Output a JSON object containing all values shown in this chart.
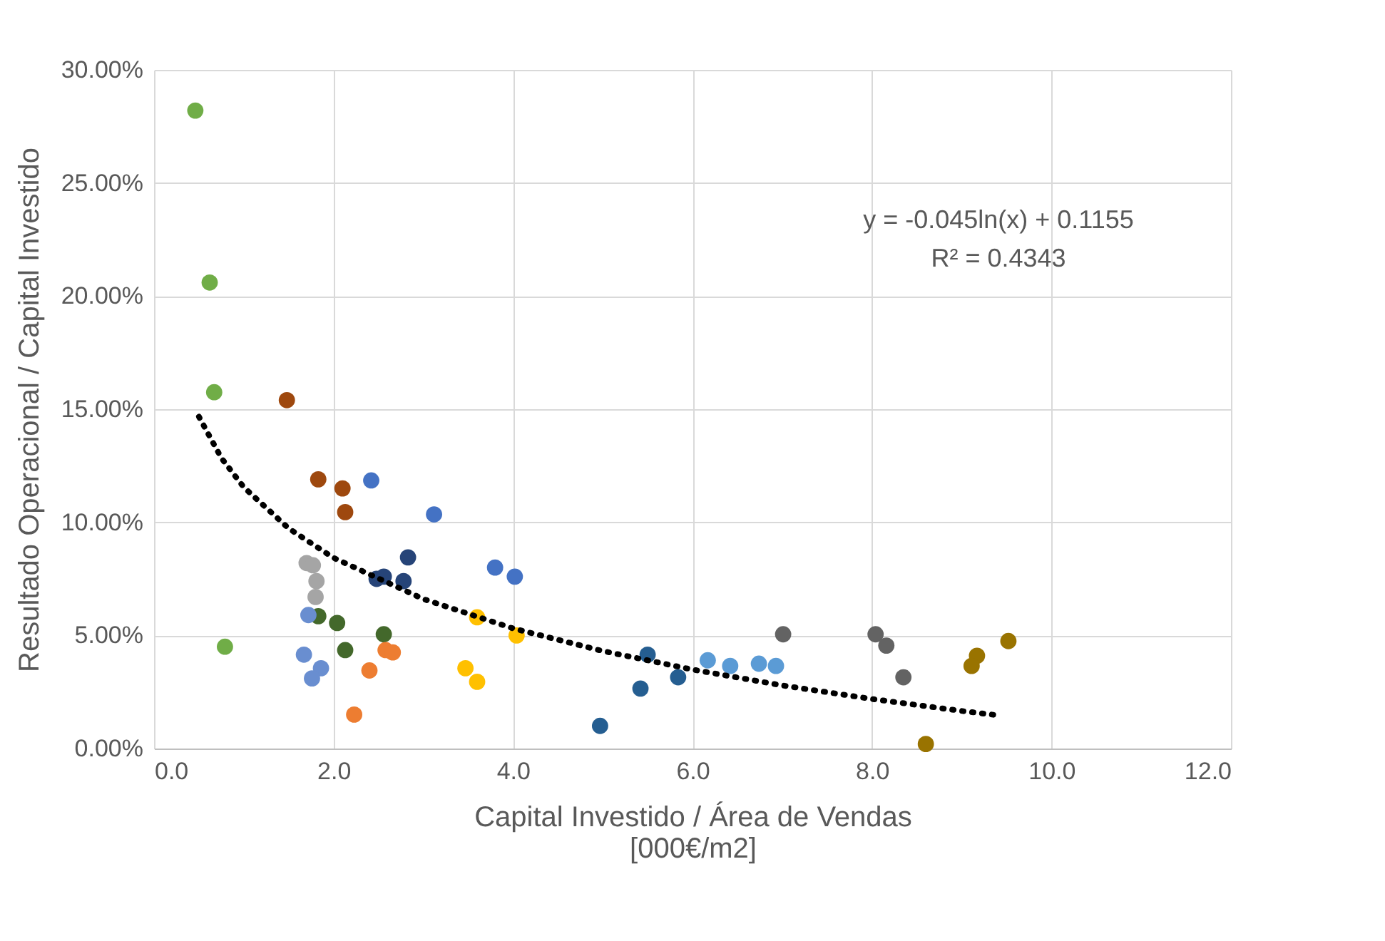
{
  "chart_data": {
    "type": "scatter",
    "xlabel": "Capital Investido / Área de Vendas\n[000€/m2]",
    "ylabel": "Resultado Operacional / Capital Investido",
    "xlim": [
      0,
      12
    ],
    "xticks": [
      {
        "value": 0,
        "label": "0.0"
      },
      {
        "value": 2,
        "label": "2.0"
      },
      {
        "value": 4,
        "label": "4.0"
      },
      {
        "value": 6,
        "label": "6.0"
      },
      {
        "value": 8,
        "label": "8.0"
      },
      {
        "value": 10,
        "label": "10.0"
      },
      {
        "value": 12,
        "label": "12.0"
      }
    ],
    "ylim": [
      0,
      30
    ],
    "yticks": [
      {
        "value": 0,
        "label": "0.00%"
      },
      {
        "value": 5,
        "label": "5.00%"
      },
      {
        "value": 10,
        "label": "10.00%"
      },
      {
        "value": 15,
        "label": "15.00%"
      },
      {
        "value": 20,
        "label": "20.00%"
      },
      {
        "value": 25,
        "label": "25.00%"
      },
      {
        "value": 30,
        "label": "30.00%"
      }
    ],
    "grid": true,
    "marker": "circle",
    "annotations": [
      "y = -0.045ln(x) + 0.1155",
      "R² = 0.4343"
    ],
    "series": [
      {
        "color": "#70ad47",
        "x": [
          0.46,
          0.62,
          0.67,
          0.79
        ],
        "values": [
          28.2,
          20.6,
          15.75,
          4.5
        ]
      },
      {
        "color": "#9e480e",
        "x": [
          1.48,
          1.83,
          2.1,
          2.13
        ],
        "values": [
          15.4,
          11.9,
          11.5,
          10.45
        ]
      },
      {
        "color": "#4472c4",
        "x": [
          2.42,
          3.12,
          3.8,
          4.02
        ],
        "values": [
          11.85,
          10.35,
          8.0,
          7.6
        ]
      },
      {
        "color": "#264478",
        "x": [
          2.48,
          2.56,
          2.78,
          2.83
        ],
        "values": [
          7.5,
          7.6,
          7.4,
          8.45
        ]
      },
      {
        "color": "#a5a5a5",
        "x": [
          1.7,
          1.77,
          1.81,
          1.8
        ],
        "values": [
          8.2,
          8.1,
          7.4,
          6.7
        ]
      },
      {
        "color": "#43682b",
        "x": [
          1.83,
          2.04,
          2.13,
          2.56
        ],
        "values": [
          5.85,
          5.55,
          4.35,
          5.05
        ]
      },
      {
        "color": "#698ed0",
        "x": [
          1.72,
          1.67,
          1.86,
          1.76
        ],
        "values": [
          5.9,
          4.15,
          3.55,
          3.1
        ]
      },
      {
        "color": "#ed7d31",
        "x": [
          2.4,
          2.58,
          2.66,
          2.23
        ],
        "values": [
          3.45,
          4.35,
          4.25,
          1.5
        ]
      },
      {
        "color": "#ffc000",
        "x": [
          3.6,
          3.47,
          3.6,
          4.04
        ],
        "values": [
          5.8,
          3.55,
          2.95,
          5.0
        ]
      },
      {
        "color": "#255e91",
        "x": [
          4.97,
          5.42,
          5.5,
          5.84
        ],
        "values": [
          1.0,
          2.65,
          4.15,
          3.15
        ]
      },
      {
        "color": "#5b9bd5",
        "x": [
          6.17,
          6.42,
          6.74,
          6.93
        ],
        "values": [
          3.9,
          3.65,
          3.75,
          3.65
        ]
      },
      {
        "color": "#636363",
        "x": [
          7.01,
          8.04,
          8.16,
          8.35
        ],
        "values": [
          5.05,
          5.05,
          4.55,
          3.15
        ]
      },
      {
        "color": "#997300",
        "x": [
          9.17,
          9.11,
          9.52,
          8.6
        ],
        "values": [
          4.1,
          3.65,
          4.75,
          0.2
        ]
      },
      {
        "type": "line",
        "marker": "none",
        "color": "#000000",
        "line_style": "dotted",
        "x": [
          0.5,
          0.75,
          1,
          1.5,
          2,
          3,
          4,
          5,
          6,
          7,
          8,
          9,
          9.4
        ],
        "values": [
          14.67,
          12.84,
          11.55,
          9.73,
          8.43,
          6.61,
          5.31,
          4.31,
          3.49,
          2.79,
          2.19,
          1.66,
          1.47
        ]
      }
    ]
  }
}
